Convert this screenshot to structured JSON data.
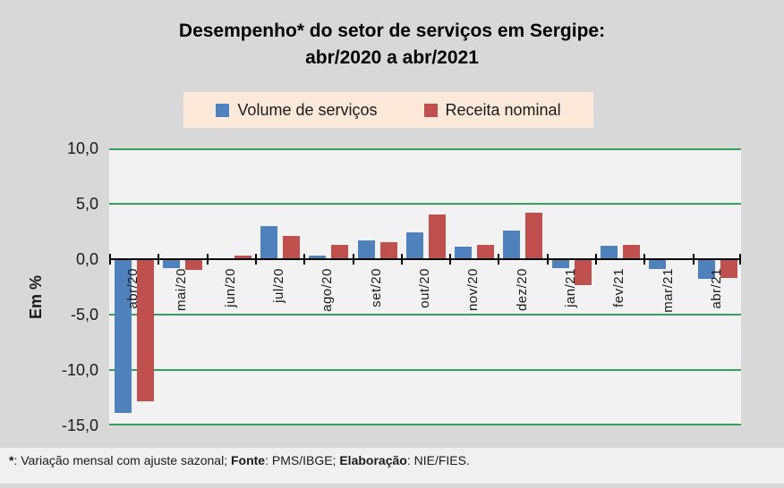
{
  "title_lines": [
    "Desempenho* do setor de serviços em Sergipe:",
    "abr/2020 a abr/2021"
  ],
  "legend": {
    "background": "#fce9da",
    "items": [
      {
        "label": "Volume de serviços",
        "color": "#4f81bd"
      },
      {
        "label": "Receita nominal",
        "color": "#c0504d"
      }
    ]
  },
  "y_axis": {
    "title": "Em %",
    "ticks": [
      {
        "label": "10,0",
        "value": 10
      },
      {
        "label": "5,0",
        "value": 5
      },
      {
        "label": "0,0",
        "value": 0
      },
      {
        "label": "-5,0",
        "value": -5
      },
      {
        "label": "-10,0",
        "value": -10
      },
      {
        "label": "-15,0",
        "value": -15
      }
    ]
  },
  "chart_data": {
    "type": "bar",
    "title": "Desempenho* do setor de serviços em Sergipe: abr/2020 a abr/2021",
    "ylabel": "Em %",
    "ylim": [
      -15,
      10
    ],
    "ytick_step": 5,
    "grid": true,
    "gridline_color": "#33a15c",
    "legend_position": "top",
    "categories": [
      "abr/20",
      "mai/20",
      "jun/20",
      "jul/20",
      "ago/20",
      "set/20",
      "out/20",
      "nov/20",
      "dez/20",
      "jan/21",
      "fev/21",
      "mar/21",
      "abr/21"
    ],
    "series": [
      {
        "name": "Volume de serviços",
        "color": "#4f81bd",
        "values": [
          -13.9,
          -0.8,
          0.0,
          3.0,
          0.3,
          1.7,
          2.4,
          1.1,
          2.6,
          -0.8,
          1.2,
          -0.9,
          -1.8
        ]
      },
      {
        "name": "Receita nominal",
        "color": "#c0504d",
        "values": [
          -12.8,
          -1.0,
          0.3,
          2.1,
          1.3,
          1.5,
          4.0,
          1.3,
          4.2,
          -2.3,
          1.3,
          0.1,
          -1.7
        ]
      }
    ]
  },
  "footer": {
    "segments": [
      {
        "text": "*",
        "bold": true
      },
      {
        "text": ": Variação mensal com ajuste sazonal; ",
        "bold": false
      },
      {
        "text": "Fonte",
        "bold": true
      },
      {
        "text": ": PMS/IBGE; ",
        "bold": false
      },
      {
        "text": "Elaboração",
        "bold": true
      },
      {
        "text": ": NIE/FIES.",
        "bold": false
      }
    ]
  }
}
